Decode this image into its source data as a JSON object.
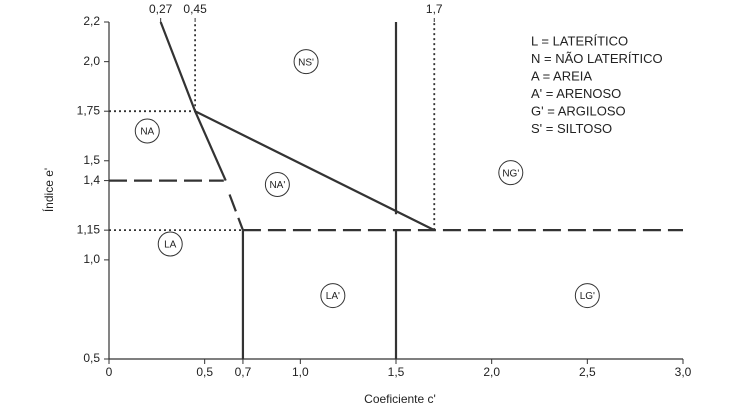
{
  "chart_data": {
    "type": "line",
    "x_label": "Coeficiente c'",
    "y_label": "Índice e'",
    "xlim": [
      0,
      3.0
    ],
    "ylim": [
      0.5,
      2.2
    ],
    "xticks": [
      0,
      {
        "value": 0.5,
        "label": "0,5"
      },
      {
        "value": 0.7,
        "label": "0,7"
      },
      {
        "value": 1.0,
        "label": "1,0"
      },
      {
        "value": 1.5,
        "label": "1,5"
      },
      {
        "value": 2.0,
        "label": "2,0"
      },
      {
        "value": 2.5,
        "label": "2,5"
      },
      {
        "value": 3.0,
        "label": "3,0"
      }
    ],
    "x2ticks": [
      {
        "value": 0.27,
        "label": "0,27"
      },
      {
        "value": 0.45,
        "label": "0,45"
      },
      {
        "value": 1.7,
        "label": "1,7"
      }
    ],
    "yticks": [
      {
        "value": 0.5,
        "label": "0,5"
      },
      {
        "value": 1.0,
        "label": "1,0"
      },
      {
        "value": 1.15,
        "label": "1,15"
      },
      {
        "value": 1.4,
        "label": "1,4"
      },
      {
        "value": 1.5,
        "label": "1,5"
      },
      {
        "value": 1.75,
        "label": "1,75"
      },
      {
        "value": 2.0,
        "label": "2,0"
      },
      {
        "value": 2.2,
        "label": "2,2"
      }
    ],
    "color": "#333333",
    "lines": [
      {
        "style": "solid",
        "x": [
          0.27,
          0.45,
          1.7
        ],
        "y": [
          2.2,
          1.75,
          1.15
        ]
      },
      {
        "style": "solid",
        "x": [
          0.45,
          0.61
        ],
        "y": [
          1.75,
          1.4
        ]
      },
      {
        "style": "dashed",
        "x": [
          0.63,
          0.7
        ],
        "y": [
          1.33,
          1.15
        ]
      },
      {
        "style": "solid",
        "x": [
          1.5,
          1.5
        ],
        "y": [
          2.2,
          1.23
        ]
      },
      {
        "style": "solid",
        "x": [
          1.5,
          1.5
        ],
        "y": [
          1.15,
          0.5
        ]
      },
      {
        "style": "solid",
        "x": [
          0.7,
          0.7
        ],
        "y": [
          1.15,
          0.5
        ]
      },
      {
        "style": "dashed",
        "x": [
          0,
          0.6
        ],
        "y": [
          1.4,
          1.4
        ]
      },
      {
        "style": "dashed",
        "x": [
          0.7,
          3.0
        ],
        "y": [
          1.15,
          1.15
        ]
      },
      {
        "style": "dotted",
        "x": [
          0,
          0.7
        ],
        "y": [
          1.15,
          1.15
        ]
      },
      {
        "style": "dotted",
        "x": [
          0,
          0.45
        ],
        "y": [
          1.75,
          1.75
        ]
      },
      {
        "style": "dotted",
        "x": [
          0.45,
          0.45
        ],
        "y": [
          1.75,
          2.2
        ]
      },
      {
        "style": "dotted",
        "x": [
          1.7,
          1.7
        ],
        "y": [
          1.15,
          2.2
        ]
      }
    ],
    "regions": [
      {
        "label": "NA",
        "x": 0.2,
        "y": 1.65
      },
      {
        "label": "NS'",
        "x": 1.03,
        "y": 2.0
      },
      {
        "label": "NA'",
        "x": 0.88,
        "y": 1.38
      },
      {
        "label": "NG'",
        "x": 2.1,
        "y": 1.44
      },
      {
        "label": "LA",
        "x": 0.32,
        "y": 1.08
      },
      {
        "label": "LA'",
        "x": 1.17,
        "y": 0.82
      },
      {
        "label": "LG'",
        "x": 2.5,
        "y": 0.82
      }
    ],
    "notes": [
      "L = LATERÍTICO",
      "N = NÃO LATERÍTICO",
      "A = AREIA",
      "A' = ARENOSO",
      "G' = ARGILOSO",
      "S' = SILTOSO"
    ]
  }
}
